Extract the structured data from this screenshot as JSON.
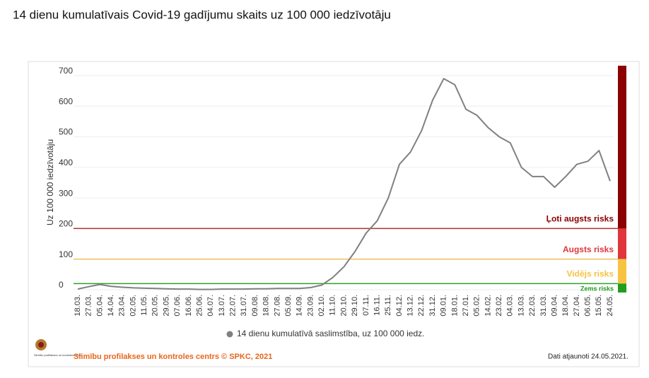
{
  "chart_data": {
    "type": "line",
    "title": "14 dienu kumulatīvais Covid-19 gadījumu skaits uz 100 000 iedzīvotāju",
    "ylabel": "Uz 100 000 iedzīvotāju",
    "categories": [
      "18.03.",
      "27.03.",
      "05.04.",
      "14.04.",
      "23.04.",
      "02.05.",
      "11.05.",
      "20.05.",
      "29.05.",
      "07.06.",
      "16.06.",
      "25.06.",
      "04.07.",
      "13.07.",
      "22.07.",
      "31.07.",
      "09.08.",
      "18.08.",
      "27.08.",
      "05.09.",
      "14.09.",
      "23.09.",
      "02.10.",
      "11.10.",
      "20.10.",
      "29.10.",
      "07.11.",
      "16.11.",
      "25.11.",
      "04.12.",
      "13.12.",
      "22.12.",
      "31.12.",
      "09.01.",
      "18.01.",
      "27.01.",
      "05.02.",
      "14.02.",
      "23.02.",
      "04.03.",
      "13.03.",
      "22.03.",
      "31.03.",
      "09.04.",
      "18.04.",
      "27.04.",
      "06.05.",
      "15.05.",
      "24.05."
    ],
    "series": [
      {
        "name": "14 dienu kumulatīvā saslimstība, uz 100 000 iedz.",
        "color": "#808080",
        "values": [
          2,
          10,
          17,
          11,
          8,
          6,
          5,
          4,
          3,
          2,
          2,
          1,
          1,
          2,
          2,
          2,
          3,
          3,
          4,
          4,
          4,
          7,
          15,
          40,
          75,
          125,
          185,
          225,
          300,
          410,
          450,
          520,
          620,
          690,
          670,
          590,
          570,
          530,
          500,
          480,
          400,
          370,
          370,
          335,
          370,
          410,
          420,
          455,
          355
        ]
      }
    ],
    "ylim": [
      0,
      700
    ],
    "yticks": [
      0,
      100,
      200,
      300,
      400,
      500,
      600,
      700
    ],
    "grid": true,
    "risk_levels": [
      {
        "label": "Ļoti augsts risks",
        "value": 200,
        "color": "#8b0000",
        "line_color": "#b03030"
      },
      {
        "label": "Augsts risks",
        "value": 100,
        "color": "#e0363b",
        "line_color": "#f0c060"
      },
      {
        "label": "Vidējs risks",
        "value": 20,
        "color": "#f6c342",
        "line_color": "#2ca02c"
      },
      {
        "label": "Zems risks",
        "color": "#1f9d1f"
      }
    ],
    "source": "Slimību profilakses un kontroles centrs © SPKC, 2021",
    "logo_text": "Slimību profilakses un kontroles centrs",
    "updated": "Dati atjaunoti 24.05.2021."
  }
}
